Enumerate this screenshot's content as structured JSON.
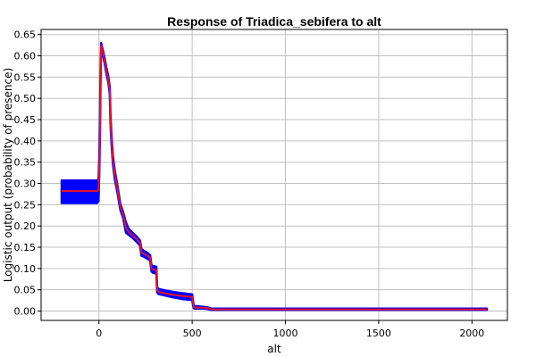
{
  "chart_data": {
    "type": "line",
    "title": "Response of Triadica_sebifera to alt",
    "xlabel": "alt",
    "ylabel": "Logistic output (probability of presence)",
    "xlim": [
      -310,
      2190
    ],
    "ylim": [
      -0.022,
      0.662
    ],
    "xticks": [
      0,
      500,
      1000,
      1500,
      2000
    ],
    "yticks": [
      0.0,
      0.05,
      0.1,
      0.15,
      0.2,
      0.25,
      0.3,
      0.35,
      0.4,
      0.45,
      0.5,
      0.55,
      0.6,
      0.65
    ],
    "grid": true,
    "colors": {
      "mean": "#e8102a",
      "band": "#0000ff",
      "grid": "#c0c0c0"
    },
    "series": [
      {
        "role": "mean",
        "x": [
          -200,
          -10,
          -2,
          2,
          5,
          8,
          12,
          20,
          30,
          40,
          50,
          58,
          62,
          68,
          75,
          85,
          100,
          115,
          130,
          145,
          160,
          180,
          200,
          220,
          228,
          240,
          260,
          275,
          282,
          290,
          300,
          308,
          312,
          320,
          340,
          360,
          400,
          450,
          500,
          508,
          512,
          530,
          560,
          580,
          600,
          620,
          700,
          1000,
          1500,
          2000,
          2080
        ],
        "y": [
          0.282,
          0.282,
          0.285,
          0.34,
          0.42,
          0.53,
          0.625,
          0.61,
          0.59,
          0.565,
          0.545,
          0.52,
          0.45,
          0.4,
          0.355,
          0.32,
          0.285,
          0.245,
          0.225,
          0.195,
          0.186,
          0.178,
          0.17,
          0.16,
          0.138,
          0.135,
          0.13,
          0.125,
          0.1,
          0.098,
          0.097,
          0.096,
          0.05,
          0.045,
          0.043,
          0.041,
          0.038,
          0.035,
          0.033,
          0.01,
          0.008,
          0.008,
          0.008,
          0.007,
          0.004,
          0.004,
          0.004,
          0.004,
          0.004,
          0.004,
          0.004
        ]
      },
      {
        "role": "band",
        "x": [
          -200,
          -10,
          -2,
          2,
          5,
          8,
          12,
          20,
          30,
          40,
          50,
          58,
          62,
          68,
          75,
          85,
          100,
          115,
          130,
          145,
          160,
          180,
          200,
          220,
          228,
          240,
          260,
          275,
          282,
          290,
          300,
          308,
          312,
          320,
          340,
          360,
          400,
          450,
          500,
          508,
          512,
          530,
          560,
          580,
          600,
          620,
          700,
          1000,
          1500,
          2000,
          2080
        ],
        "upper": [
          0.307,
          0.307,
          0.31,
          0.36,
          0.44,
          0.545,
          0.63,
          0.615,
          0.596,
          0.572,
          0.552,
          0.528,
          0.46,
          0.41,
          0.365,
          0.33,
          0.293,
          0.252,
          0.232,
          0.208,
          0.193,
          0.184,
          0.176,
          0.166,
          0.146,
          0.142,
          0.137,
          0.131,
          0.107,
          0.106,
          0.105,
          0.104,
          0.056,
          0.052,
          0.05,
          0.048,
          0.045,
          0.042,
          0.039,
          0.013,
          0.011,
          0.011,
          0.01,
          0.009,
          0.006,
          0.006,
          0.006,
          0.006,
          0.006,
          0.006,
          0.006
        ],
        "lower": [
          0.254,
          0.254,
          0.258,
          0.32,
          0.4,
          0.515,
          0.62,
          0.605,
          0.584,
          0.558,
          0.538,
          0.512,
          0.44,
          0.39,
          0.345,
          0.31,
          0.277,
          0.238,
          0.218,
          0.184,
          0.179,
          0.172,
          0.164,
          0.154,
          0.13,
          0.128,
          0.123,
          0.119,
          0.093,
          0.09,
          0.089,
          0.088,
          0.044,
          0.04,
          0.038,
          0.036,
          0.032,
          0.028,
          0.026,
          0.007,
          0.006,
          0.006,
          0.006,
          0.005,
          0.003,
          0.003,
          0.003,
          0.003,
          0.003,
          0.003,
          0.003
        ]
      }
    ]
  }
}
